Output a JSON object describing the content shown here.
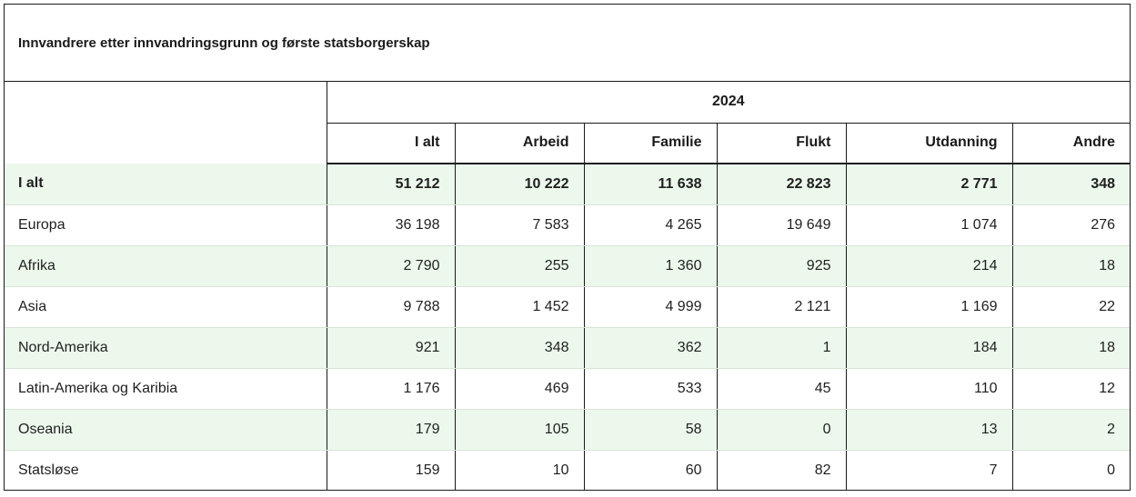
{
  "table": {
    "title": "Innvandrere etter innvandringsgrunn og første statsborgerskap",
    "year": "2024",
    "columns": [
      "I alt",
      "Arbeid",
      "Familie",
      "Flukt",
      "Utdanning",
      "Andre"
    ],
    "rows": [
      {
        "label": "I alt",
        "values": [
          "51 212",
          "10 222",
          "11 638",
          "22 823",
          "2 771",
          "348"
        ]
      },
      {
        "label": "Europa",
        "values": [
          "36 198",
          "7 583",
          "4 265",
          "19 649",
          "1 074",
          "276"
        ]
      },
      {
        "label": "Afrika",
        "values": [
          "2 790",
          "255",
          "1 360",
          "925",
          "214",
          "18"
        ]
      },
      {
        "label": "Asia",
        "values": [
          "9 788",
          "1 452",
          "4 999",
          "2 121",
          "1 169",
          "22"
        ]
      },
      {
        "label": "Nord-Amerika",
        "values": [
          "921",
          "348",
          "362",
          "1",
          "184",
          "18"
        ]
      },
      {
        "label": "Latin-Amerika og Karibia",
        "values": [
          "1 176",
          "469",
          "533",
          "45",
          "110",
          "12"
        ]
      },
      {
        "label": "Oseania",
        "values": [
          "179",
          "105",
          "58",
          "0",
          "13",
          "2"
        ]
      },
      {
        "label": "Statsløse",
        "values": [
          "159",
          "10",
          "60",
          "82",
          "7",
          "0"
        ]
      }
    ]
  },
  "colors": {
    "row_shade": "#ecf8ec",
    "border": "#1a1a1a",
    "row_divider": "#d8e4d8"
  }
}
